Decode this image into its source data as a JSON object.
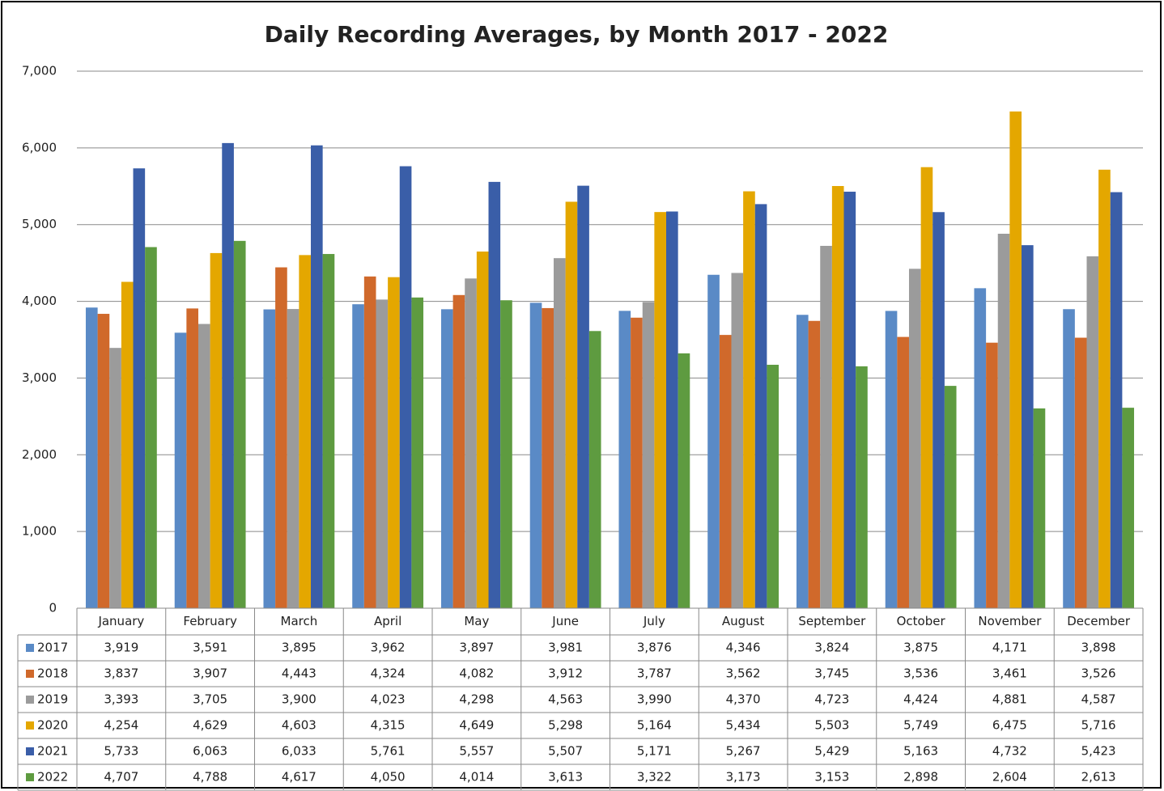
{
  "chart_data": {
    "type": "bar",
    "title": "Daily Recording Averages, by Month 2017 - 2022",
    "categories": [
      "January",
      "February",
      "March",
      "April",
      "May",
      "June",
      "July",
      "August",
      "September",
      "October",
      "November",
      "December"
    ],
    "series": [
      {
        "name": "2017",
        "color": "#5a8ac6",
        "values": [
          3919,
          3591,
          3895,
          3962,
          3897,
          3981,
          3876,
          4346,
          3824,
          3875,
          4171,
          3898
        ],
        "value_labels": [
          "3,919",
          "3,591",
          "3,895",
          "3,962",
          "3,897",
          "3,981",
          "3,876",
          "4,346",
          "3,824",
          "3,875",
          "4,171",
          "3,898"
        ]
      },
      {
        "name": "2018",
        "color": "#d0692b",
        "values": [
          3837,
          3907,
          4443,
          4324,
          4082,
          3912,
          3787,
          3562,
          3745,
          3536,
          3461,
          3526
        ],
        "value_labels": [
          "3,837",
          "3,907",
          "4,443",
          "4,324",
          "4,082",
          "3,912",
          "3,787",
          "3,562",
          "3,745",
          "3,536",
          "3,461",
          "3,526"
        ]
      },
      {
        "name": "2019",
        "color": "#9b9b9b",
        "values": [
          3393,
          3705,
          3900,
          4023,
          4298,
          4563,
          3990,
          4370,
          4723,
          4424,
          4881,
          4587
        ],
        "value_labels": [
          "3,393",
          "3,705",
          "3,900",
          "4,023",
          "4,298",
          "4,563",
          "3,990",
          "4,370",
          "4,723",
          "4,424",
          "4,881",
          "4,587"
        ]
      },
      {
        "name": "2020",
        "color": "#e4a700",
        "values": [
          4254,
          4629,
          4603,
          4315,
          4649,
          5298,
          5164,
          5434,
          5503,
          5749,
          6475,
          5716
        ],
        "value_labels": [
          "4,254",
          "4,629",
          "4,603",
          "4,315",
          "4,649",
          "5,298",
          "5,164",
          "5,434",
          "5,503",
          "5,749",
          "6,475",
          "5,716"
        ]
      },
      {
        "name": "2021",
        "color": "#3a5ea8",
        "values": [
          5733,
          6063,
          6033,
          5761,
          5557,
          5507,
          5171,
          5267,
          5429,
          5163,
          4732,
          5423
        ],
        "value_labels": [
          "5,733",
          "6,063",
          "6,033",
          "5,761",
          "5,557",
          "5,507",
          "5,171",
          "5,267",
          "5,429",
          "5,163",
          "4,732",
          "5,423"
        ]
      },
      {
        "name": "2022",
        "color": "#5e9b40",
        "values": [
          4707,
          4788,
          4617,
          4050,
          4014,
          3613,
          3322,
          3173,
          3153,
          2898,
          2604,
          2613
        ],
        "value_labels": [
          "4,707",
          "4,788",
          "4,617",
          "4,050",
          "4,014",
          "3,613",
          "3,322",
          "3,173",
          "3,153",
          "2,898",
          "2,604",
          "2,613"
        ]
      }
    ],
    "ylim": [
      0,
      7000
    ],
    "yticks": [
      0,
      {
        "value": 1000,
        "label": "1,000"
      },
      {
        "value": 2000,
        "label": "2,000"
      },
      {
        "value": 3000,
        "label": "3,000"
      },
      {
        "value": 4000,
        "label": "4,000"
      },
      {
        "value": 5000,
        "label": "5,000"
      },
      {
        "value": 6000,
        "label": "6,000"
      },
      {
        "value": 7000,
        "label": "7,000"
      }
    ],
    "grid": true
  }
}
